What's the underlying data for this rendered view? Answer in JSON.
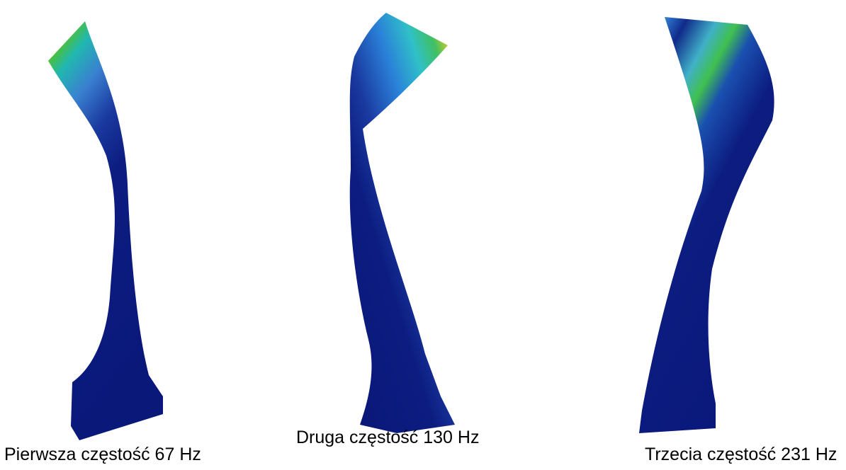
{
  "captions": [
    "Pierwsza częstość 67 Hz",
    "Druga częstość 130 Hz",
    "Trzecia częstość 231 Hz"
  ]
}
